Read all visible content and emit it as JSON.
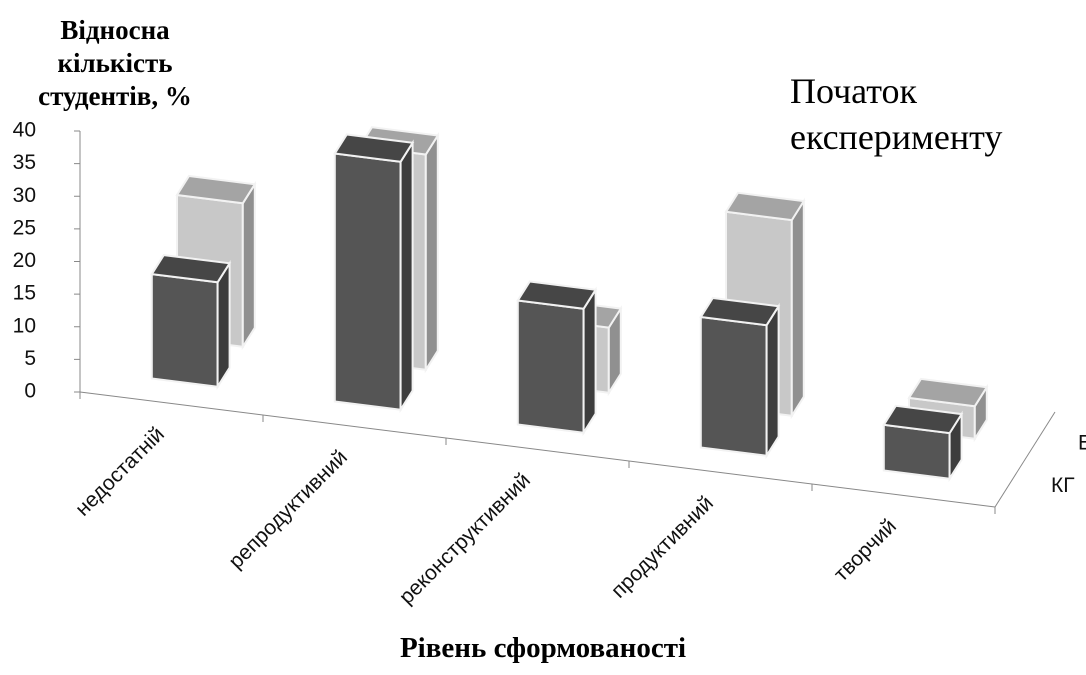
{
  "chart_data": {
    "type": "bar3d",
    "title": "Початок експерименту",
    "y_label": "Відносна кількість студентів, %",
    "x_label": "Рівень сформованості",
    "categories": [
      "недостатній",
      "репродуктивний",
      "реконструктивний",
      "продуктивний",
      "творчий"
    ],
    "series": [
      {
        "name": "КГ",
        "color": "#555555",
        "values": [
          16,
          38,
          19,
          20,
          7
        ]
      },
      {
        "name": "ЕГ",
        "color": "#c8c8c8",
        "values": [
          22,
          33,
          10,
          30,
          5
        ]
      }
    ],
    "ylim": [
      0,
      40
    ],
    "yticks": [
      0,
      5,
      10,
      15,
      20,
      25,
      30,
      35,
      40
    ]
  }
}
